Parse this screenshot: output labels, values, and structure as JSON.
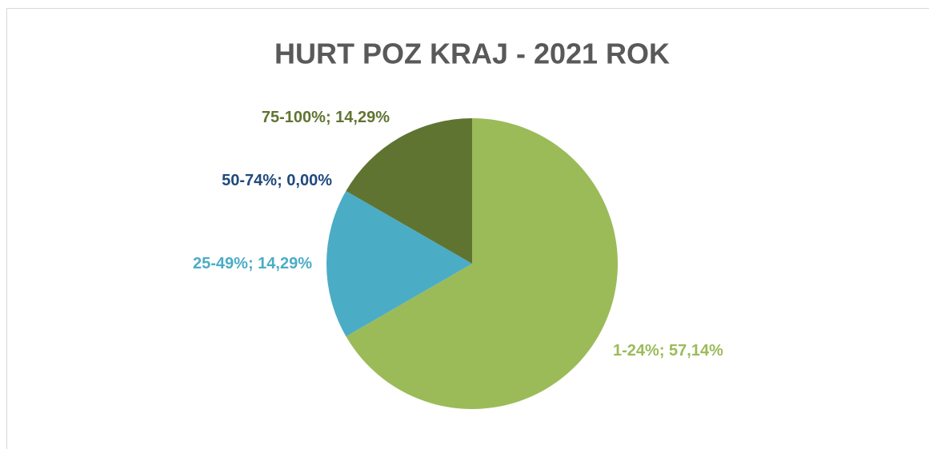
{
  "chart_data": {
    "type": "pie",
    "title": "HURT POZ KRAJ - 2021 ROK",
    "categories": [
      "1-24%",
      "25-49%",
      "50-74%",
      "75-100%"
    ],
    "values": [
      57.14,
      14.29,
      0.0,
      14.29
    ],
    "value_labels": [
      "57,14%",
      "14,29%",
      "0,00%",
      "14,29%"
    ],
    "colors": [
      "#9bbb59",
      "#4bacc6",
      "#1f497d",
      "#607431"
    ]
  }
}
